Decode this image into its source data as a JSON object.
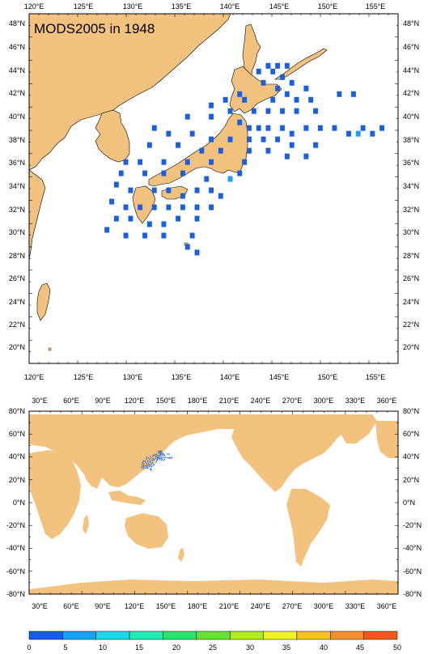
{
  "title": "MODS2005 in 1948",
  "colors": {
    "land": "#f4c27f",
    "ocean": "#ffffff",
    "frame": "#000000",
    "grid": "#000000"
  },
  "regional_map": {
    "lon_range": [
      118.3,
      157.2
    ],
    "lat_range": [
      18.7,
      49.6
    ],
    "top_lon_labels": [
      "120°E",
      "125°E",
      "130°E",
      "135°E",
      "140°E",
      "145°E",
      "150°E",
      "155°E"
    ],
    "bottom_lon_labels": [
      "120°E",
      "125°E",
      "130°E",
      "135°E",
      "140°E",
      "145°E",
      "150°E",
      "155°E"
    ],
    "left_lat_labels": [
      "20°N",
      "22°N",
      "24°N",
      "26°N",
      "28°N",
      "30°N",
      "32°N",
      "34°N",
      "36°N",
      "38°N",
      "40°N",
      "42°N",
      "44°N",
      "46°N",
      "48°N"
    ],
    "right_lat_labels": [
      "20°N",
      "22°N",
      "24°N",
      "26°N",
      "28°N",
      "30°N",
      "32°N",
      "34°N",
      "36°N",
      "38°N",
      "40°N",
      "42°N",
      "44°N",
      "46°N",
      "48°N"
    ]
  },
  "global_map": {
    "lon_range": [
      20,
      370
    ],
    "lat_range": [
      -80,
      80
    ],
    "top_lon_labels": [
      "30°E",
      "60°E",
      "90°E",
      "120°E",
      "150°E",
      "180°E",
      "210°E",
      "240°E",
      "270°E",
      "300°E",
      "330°E",
      "360°E"
    ],
    "bottom_lon_labels": [
      "30°E",
      "60°E",
      "90°E",
      "120°E",
      "150°E",
      "180°E",
      "210°E",
      "240°E",
      "270°E",
      "300°E",
      "330°E",
      "360°E"
    ],
    "left_lat_labels": [
      "80°N",
      "60°N",
      "40°N",
      "20°N",
      "0°N",
      "-20°N",
      "-40°N",
      "-60°N",
      "-80°N"
    ],
    "right_lat_labels": [
      "80°N",
      "60°N",
      "40°N",
      "20°N",
      "0°N",
      "-20°N",
      "-40°N",
      "-60°N",
      "-80°N"
    ]
  },
  "colorbar": {
    "labels": [
      "0",
      "5",
      "10",
      "15",
      "20",
      "25",
      "30",
      "35",
      "40",
      "45",
      "50"
    ],
    "colors": [
      "#1a5fe0",
      "#1f9ff0",
      "#20d6e8",
      "#26e8b0",
      "#2ee06e",
      "#66e23a",
      "#b0e82e",
      "#f0f030",
      "#f5c030",
      "#f59030",
      "#f05a1e"
    ]
  },
  "chart_data": {
    "type": "heatmap",
    "title": "MODS2005 in 1948",
    "xlim": [
      118.3,
      157.2
    ],
    "ylim": [
      18.7,
      49.6
    ],
    "scale": [
      0,
      50
    ],
    "cells": [
      [
        143.5,
        45.0,
        1
      ],
      [
        144.5,
        45.0,
        1
      ],
      [
        145.5,
        45.0,
        1
      ],
      [
        142.5,
        44.5,
        2
      ],
      [
        144.0,
        44.5,
        1
      ],
      [
        145.0,
        44.0,
        1
      ],
      [
        146.0,
        43.5,
        2
      ],
      [
        143.0,
        43.5,
        1
      ],
      [
        144.5,
        43.0,
        1
      ],
      [
        147.5,
        43.0,
        1
      ],
      [
        140.5,
        42.5,
        1
      ],
      [
        145.5,
        42.5,
        2
      ],
      [
        139.0,
        42.0,
        1
      ],
      [
        141.0,
        42.0,
        1
      ],
      [
        144.0,
        42.0,
        1
      ],
      [
        146.5,
        42.0,
        1
      ],
      [
        148.0,
        42.0,
        1
      ],
      [
        151.0,
        42.5,
        1
      ],
      [
        152.5,
        42.5,
        1
      ],
      [
        137.5,
        41.5,
        1
      ],
      [
        139.5,
        41.0,
        1
      ],
      [
        142.0,
        41.0,
        2
      ],
      [
        143.5,
        41.0,
        1
      ],
      [
        145.0,
        41.0,
        1
      ],
      [
        146.5,
        41.0,
        1
      ],
      [
        148.5,
        41.0,
        1
      ],
      [
        135.0,
        40.5,
        1
      ],
      [
        137.5,
        40.5,
        1
      ],
      [
        140.5,
        40.0,
        1
      ],
      [
        141.5,
        39.5,
        2
      ],
      [
        142.5,
        39.5,
        4
      ],
      [
        143.5,
        39.5,
        1
      ],
      [
        145.0,
        39.5,
        1
      ],
      [
        146.0,
        39.0,
        1
      ],
      [
        147.5,
        39.5,
        1
      ],
      [
        149.0,
        39.5,
        1
      ],
      [
        150.5,
        39.5,
        1
      ],
      [
        152.0,
        39.0,
        2
      ],
      [
        153.0,
        39.0,
        5
      ],
      [
        153.5,
        39.5,
        3
      ],
      [
        154.5,
        39.0,
        1
      ],
      [
        155.5,
        39.5,
        1
      ],
      [
        131.5,
        39.5,
        1
      ],
      [
        133.0,
        39.0,
        1
      ],
      [
        135.5,
        39.0,
        1
      ],
      [
        137.5,
        38.5,
        1
      ],
      [
        139.5,
        38.5,
        1
      ],
      [
        141.5,
        38.5,
        2
      ],
      [
        143.0,
        38.5,
        1
      ],
      [
        144.5,
        38.5,
        1
      ],
      [
        146.0,
        38.0,
        1
      ],
      [
        148.5,
        38.0,
        1
      ],
      [
        131.0,
        38.0,
        1
      ],
      [
        134.0,
        38.0,
        1
      ],
      [
        136.5,
        37.5,
        1
      ],
      [
        138.5,
        37.5,
        1
      ],
      [
        141.5,
        37.5,
        1
      ],
      [
        143.5,
        37.5,
        1
      ],
      [
        145.5,
        37.0,
        1
      ],
      [
        147.5,
        37.0,
        1
      ],
      [
        128.5,
        36.5,
        1
      ],
      [
        130.0,
        36.5,
        1
      ],
      [
        132.5,
        36.5,
        1
      ],
      [
        135.0,
        36.5,
        1
      ],
      [
        137.5,
        36.5,
        2
      ],
      [
        141.0,
        36.5,
        1
      ],
      [
        128.0,
        35.5,
        1
      ],
      [
        130.5,
        35.5,
        1
      ],
      [
        132.5,
        35.5,
        3
      ],
      [
        134.5,
        35.5,
        1
      ],
      [
        137.0,
        35.0,
        1
      ],
      [
        139.5,
        35.0,
        6
      ],
      [
        140.5,
        35.5,
        1
      ],
      [
        127.5,
        34.5,
        1
      ],
      [
        129.0,
        34.0,
        2
      ],
      [
        131.5,
        34.0,
        1
      ],
      [
        133.0,
        34.0,
        1
      ],
      [
        134.5,
        33.5,
        3
      ],
      [
        136.0,
        34.0,
        1
      ],
      [
        137.5,
        34.0,
        1
      ],
      [
        138.5,
        33.5,
        1
      ],
      [
        127.0,
        33.0,
        2
      ],
      [
        128.5,
        32.5,
        1
      ],
      [
        130.0,
        32.5,
        1
      ],
      [
        131.5,
        32.5,
        1
      ],
      [
        133.0,
        32.5,
        1
      ],
      [
        134.5,
        32.5,
        1
      ],
      [
        136.0,
        32.5,
        1
      ],
      [
        137.5,
        32.5,
        1
      ],
      [
        127.5,
        31.5,
        1
      ],
      [
        129.0,
        31.5,
        1
      ],
      [
        131.0,
        31.0,
        1
      ],
      [
        132.5,
        31.0,
        1
      ],
      [
        134.0,
        31.5,
        1
      ],
      [
        136.0,
        31.5,
        1
      ],
      [
        126.5,
        30.5,
        1
      ],
      [
        128.5,
        30.0,
        1
      ],
      [
        130.5,
        30.0,
        1
      ],
      [
        132.5,
        30.0,
        1
      ],
      [
        135.5,
        30.0,
        1
      ],
      [
        135.0,
        29.0,
        2
      ],
      [
        136.0,
        28.5,
        1
      ]
    ]
  }
}
